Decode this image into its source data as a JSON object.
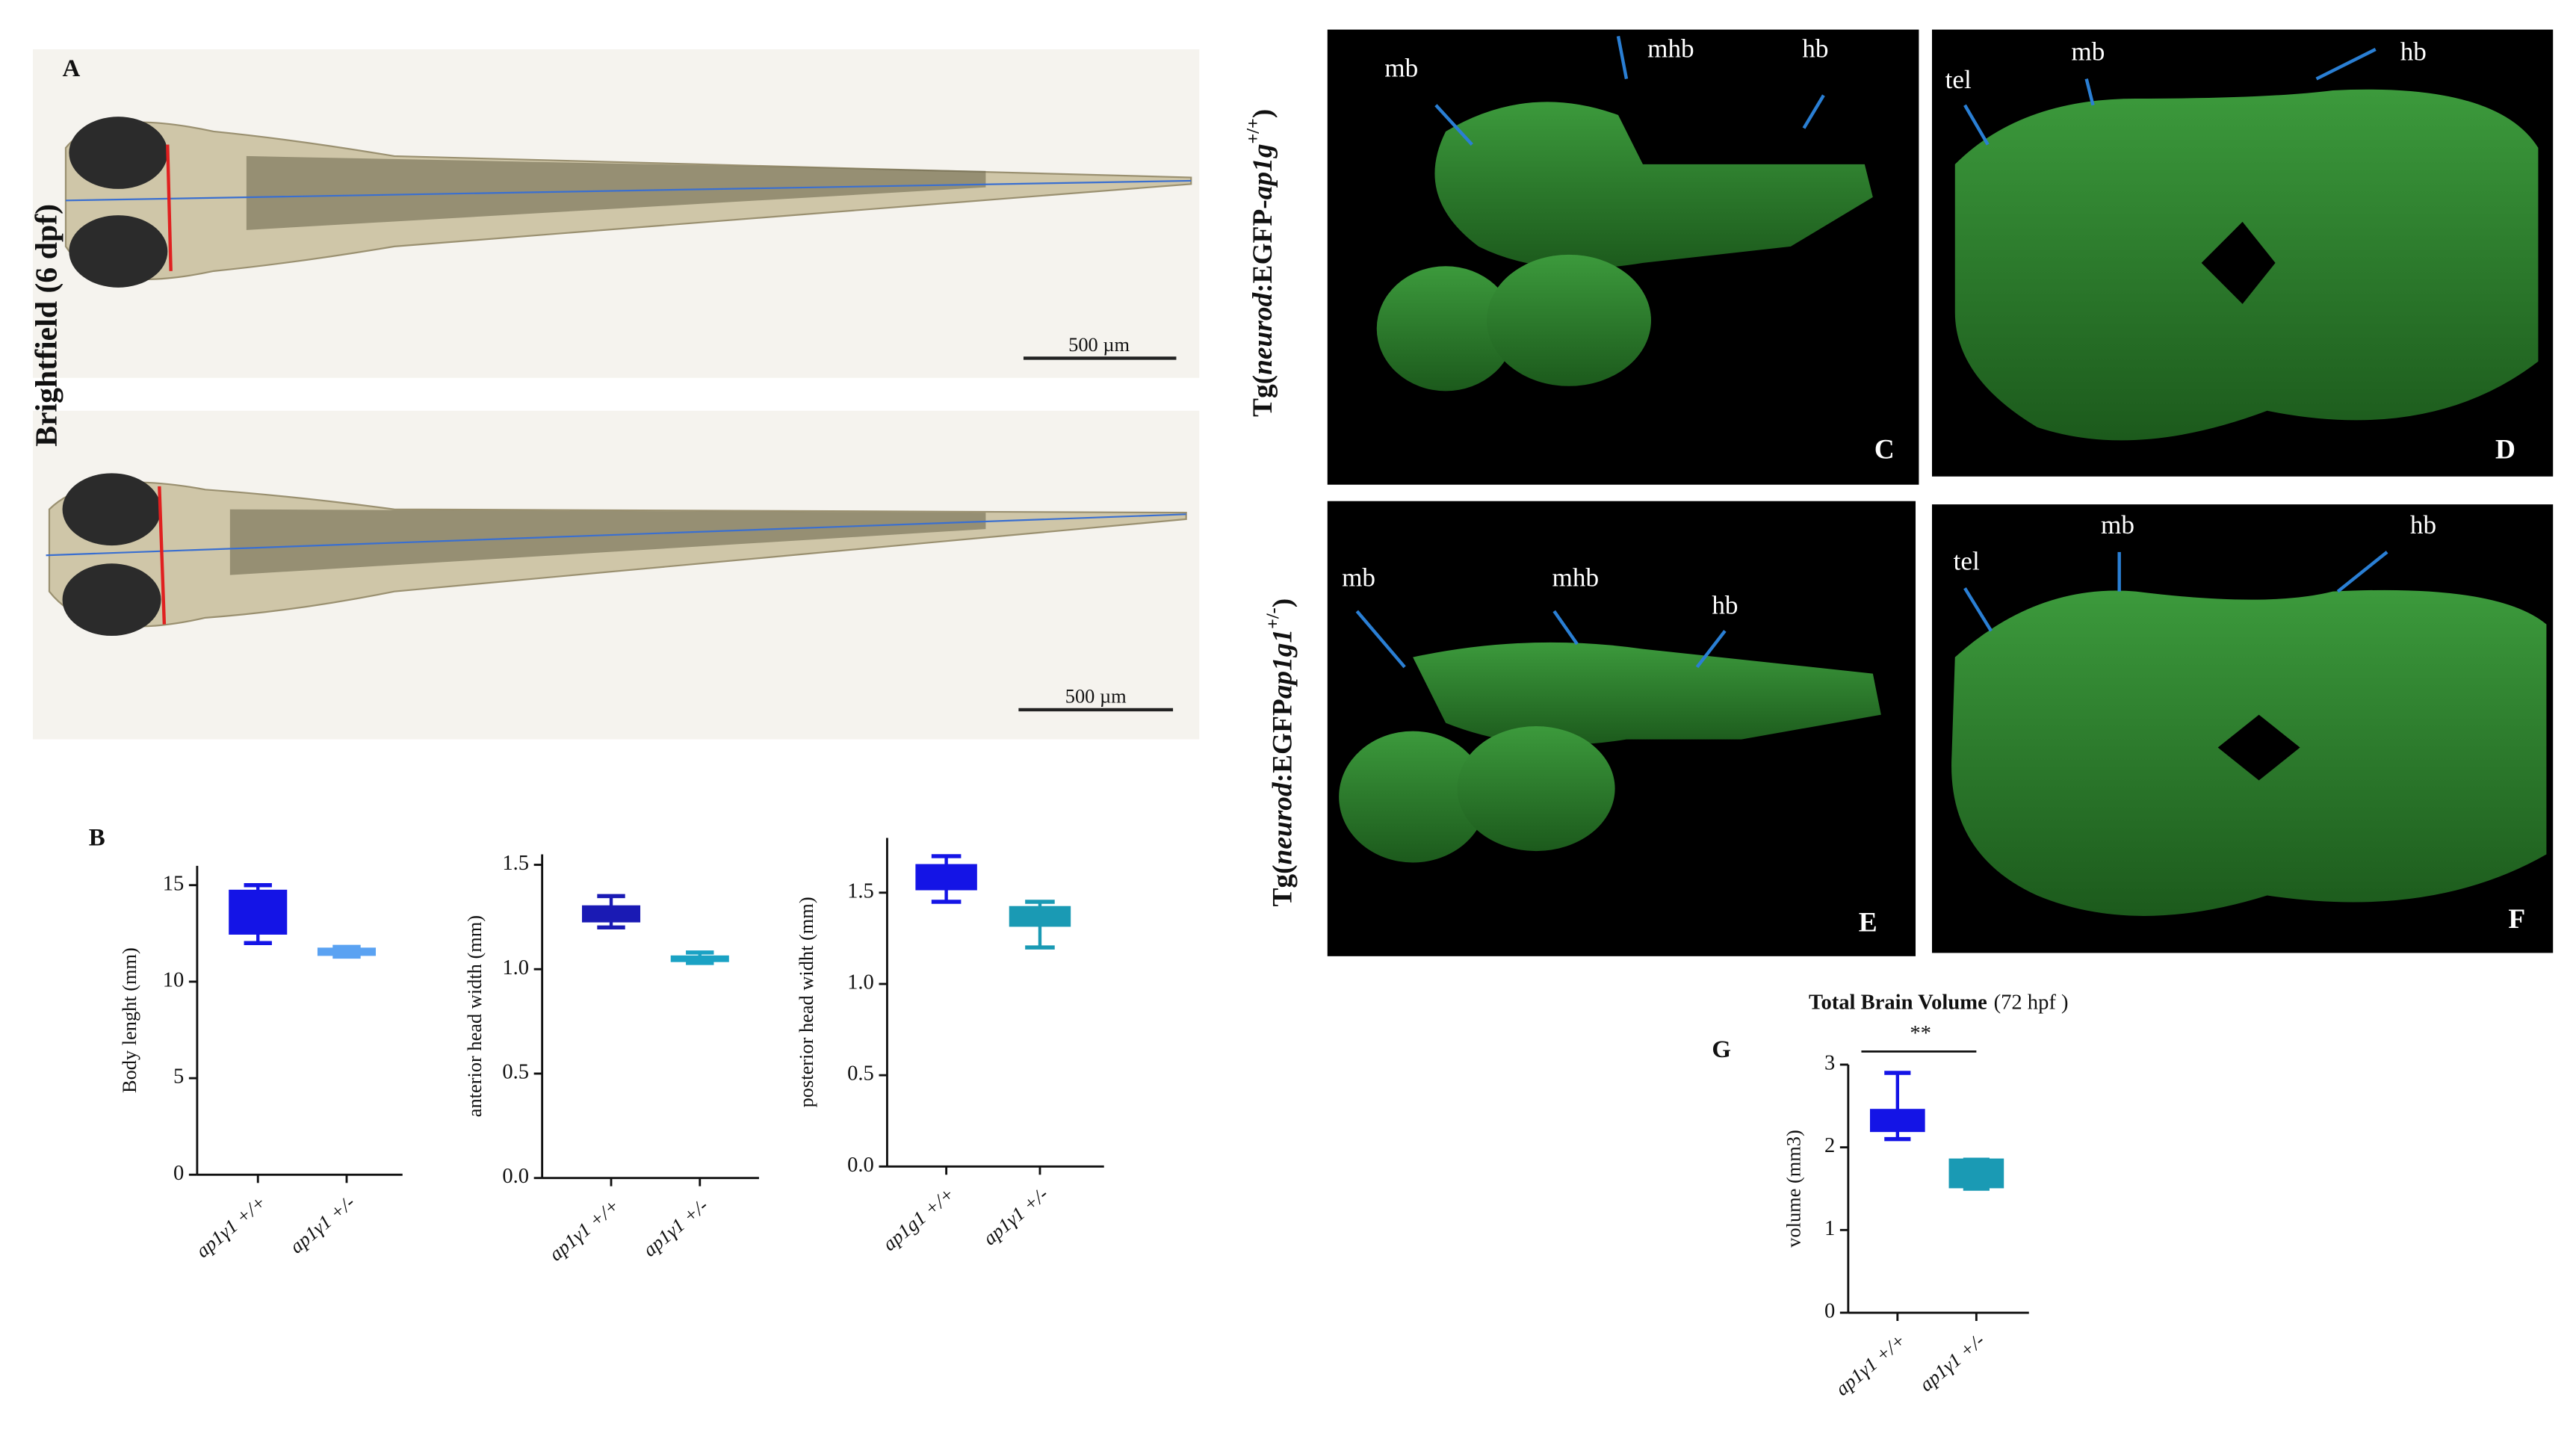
{
  "figure": {
    "panel_a": {
      "label": "A",
      "row_label": "Brightfield (6 dpf)",
      "scale_bars": [
        "500 µm",
        "500 µm"
      ]
    },
    "panel_b_label": "B",
    "row_labels": [
      [
        "Tg(",
        "neurod",
        ":EGFP-",
        "ap1g",
        "+/+",
        ")"
      ],
      [
        "Tg(",
        "neurod",
        ":EGFP",
        "ap1g1",
        "+/-",
        ")"
      ]
    ],
    "brain_panels": [
      {
        "letter": "C",
        "labels": [
          "mb",
          "mhb",
          "hb"
        ]
      },
      {
        "letter": "D",
        "labels": [
          "tel",
          "mb",
          "hb"
        ]
      },
      {
        "letter": "E",
        "labels": [
          "mb",
          "mhb",
          "hb"
        ]
      },
      {
        "letter": "F",
        "labels": [
          "tel",
          "mb",
          "hb"
        ]
      }
    ],
    "panel_g_label": "G"
  },
  "chart_data": [
    {
      "type": "box",
      "ylabel": "Body lenght (mm)",
      "categories": [
        "ap1γ1 +/+",
        "ap1γ1 +/-"
      ],
      "boxes": [
        {
          "min": 12,
          "q1": 12.5,
          "median": 13.5,
          "q3": 14.7,
          "max": 15,
          "color": "#1414e6"
        },
        {
          "min": 11.3,
          "q1": 11.4,
          "median": 11.6,
          "q3": 11.7,
          "max": 11.8,
          "color": "#5aa2f2"
        }
      ],
      "ylim": [
        0,
        16
      ],
      "yticks": [
        0,
        5,
        10,
        15
      ]
    },
    {
      "type": "box",
      "ylabel": "anterior head width (mm)",
      "categories": [
        "ap1γ1 +/+",
        "ap1γ1 +/-"
      ],
      "boxes": [
        {
          "min": 1.2,
          "q1": 1.23,
          "median": 1.27,
          "q3": 1.3,
          "max": 1.35,
          "color": "#1a1ab4"
        },
        {
          "min": 1.03,
          "q1": 1.04,
          "median": 1.05,
          "q3": 1.06,
          "max": 1.08,
          "color": "#1aa2c4"
        }
      ],
      "ylim": [
        0,
        1.55
      ],
      "yticks": [
        {
          "value": 0,
          "label": "0.0"
        },
        0.5,
        {
          "value": 1,
          "label": "1.0"
        },
        1.5
      ]
    },
    {
      "type": "box",
      "ylabel": "posterior head widht (mm)",
      "categories": [
        "ap1g1 +/+",
        "ap1γ1 +/-"
      ],
      "boxes": [
        {
          "min": 1.45,
          "q1": 1.52,
          "median": 1.6,
          "q3": 1.65,
          "max": 1.7,
          "color": "#1414e6"
        },
        {
          "min": 1.2,
          "q1": 1.32,
          "median": 1.38,
          "q3": 1.42,
          "max": 1.45,
          "color": "#1a9ab4"
        }
      ],
      "ylim": [
        0,
        1.8
      ],
      "yticks": [
        {
          "value": 0,
          "label": "0.0"
        },
        0.5,
        {
          "value": 1,
          "label": "1.0"
        },
        1.5
      ]
    },
    {
      "type": "box",
      "title": "Total Brain Volume",
      "subtitle": "(72 hpf )",
      "ylabel": "volume (mm3)",
      "annotation": "**",
      "categories": [
        "ap1γ1 +/+",
        "ap1γ1 +/-"
      ],
      "boxes": [
        {
          "min": 2.1,
          "q1": 2.2,
          "median": 2.3,
          "q3": 2.45,
          "max": 2.9,
          "color": "#1414e6"
        },
        {
          "min": 1.5,
          "q1": 1.52,
          "median": 1.6,
          "q3": 1.85,
          "max": 1.85,
          "color": "#1a9ab4"
        }
      ],
      "ylim": [
        0,
        3
      ],
      "yticks": [
        0,
        1,
        2,
        3
      ]
    }
  ]
}
